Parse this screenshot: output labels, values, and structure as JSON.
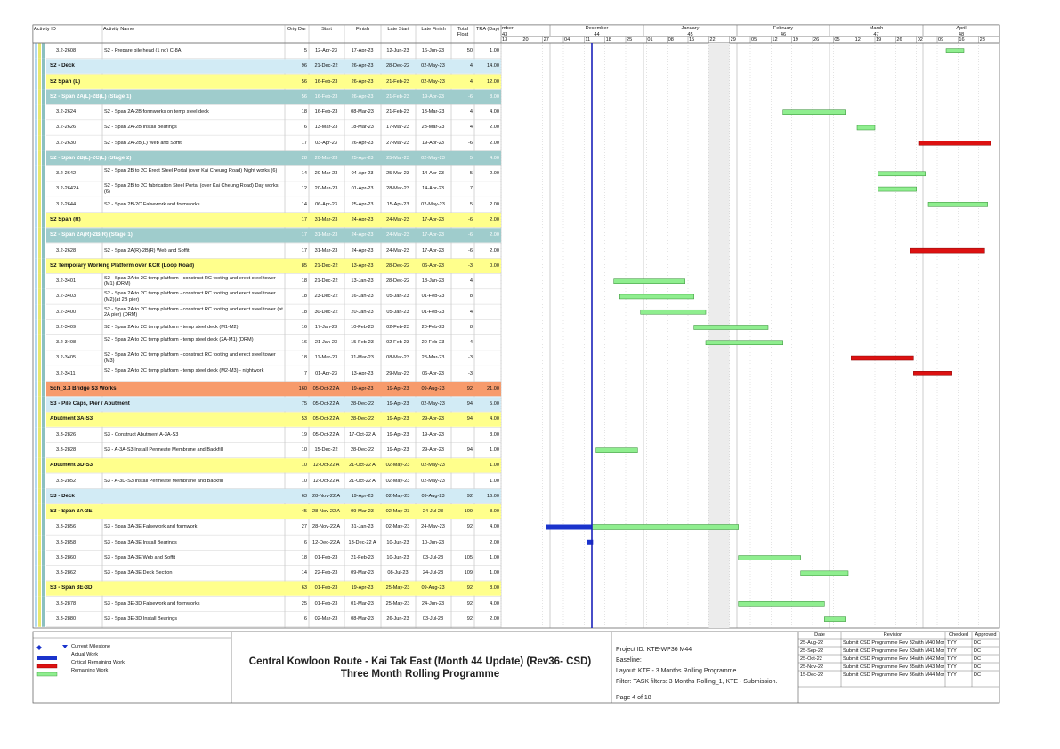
{
  "table": {
    "columns": [
      "Activity ID",
      "Activity Name",
      "Orig Dur",
      "Start",
      "Finish",
      "Late Start",
      "Late Finish",
      "Total Float",
      "TRA (Day)"
    ],
    "rows": [
      {
        "id": "3.2-2608",
        "name": "S2 - Prepare pile head (1 no) C-8A",
        "dur": "5",
        "start": "12-Apr-23",
        "finish": "17-Apr-23",
        "late_start": "12-Jun-23",
        "late_finish": "16-Jun-23",
        "float": "50",
        "tra": "1.00"
      },
      {
        "name": "S2 - Deck",
        "dur": "96",
        "start": "21-Dec-22",
        "finish": "26-Apr-23",
        "late_start": "28-Dec-22",
        "late_finish": "02-May-23",
        "float": "4",
        "tra": "14.00",
        "fill": "#d2ebf5"
      },
      {
        "name": "S2 Span (L)",
        "dur": "56",
        "start": "16-Feb-23",
        "finish": "26-Apr-23",
        "late_start": "21-Feb-23",
        "late_finish": "02-May-23",
        "float": "4",
        "tra": "12.00",
        "fill": "#ffff8c"
      },
      {
        "name": "S2 - Span 2A(L)-2B(L) (Stage 1)",
        "dur": "56",
        "start": "16-Feb-23",
        "finish": "26-Apr-23",
        "late_start": "21-Feb-23",
        "late_finish": "19-Apr-23",
        "float": "-6",
        "tra": "8.00",
        "fill": "#9fcccc"
      },
      {
        "id": "3.2-2624",
        "name": "S2 - Span 2A-2B formworks on temp steel deck",
        "dur": "18",
        "start": "16-Feb-23",
        "finish": "08-Mar-23",
        "late_start": "21-Feb-23",
        "late_finish": "13-Mar-23",
        "float": "4",
        "tra": "4.00"
      },
      {
        "id": "3.2-2626",
        "name": "S2 - Span 2A-2B Install Bearings",
        "dur": "6",
        "start": "13-Mar-23",
        "finish": "18-Mar-23",
        "late_start": "17-Mar-23",
        "late_finish": "23-Mar-23",
        "float": "4",
        "tra": "2.00"
      },
      {
        "id": "3.2-2630",
        "name": "S2 - Span 2A-2B(L) Web and Soffit",
        "dur": "17",
        "start": "03-Apr-23",
        "finish": "26-Apr-23",
        "late_start": "27-Mar-23",
        "late_finish": "19-Apr-23",
        "float": "-6",
        "tra": "2.00"
      },
      {
        "name": "S2 - Span 2B(L)-2C(L) (Stage 2)",
        "dur": "28",
        "start": "20-Mar-23",
        "finish": "25-Apr-23",
        "late_start": "25-Mar-23",
        "late_finish": "02-May-23",
        "float": "5",
        "tra": "4.00",
        "fill": "#9fcccc"
      },
      {
        "id": "3.2-2642",
        "name": "S2 - Span 2B to 2C Erect Steel Portal (over Kai Cheung Road) Night works (6)",
        "dur": "14",
        "start": "20-Mar-23",
        "finish": "04-Apr-23",
        "late_start": "25-Mar-23",
        "late_finish": "14-Apr-23",
        "float": "5",
        "tra": "2.00"
      },
      {
        "id": "3.2-2642A",
        "name": "S2 - Span 2B to 2C fabrication Steel Portal (over Kai Cheung Road) Day works (6)",
        "dur": "12",
        "start": "20-Mar-23",
        "finish": "01-Apr-23",
        "late_start": "28-Mar-23",
        "late_finish": "14-Apr-23",
        "float": "7"
      },
      {
        "id": "3.2-2644",
        "name": "S2 - Span 2B-2C Falsework and formworks",
        "dur": "14",
        "start": "06-Apr-23",
        "finish": "25-Apr-23",
        "late_start": "15-Apr-23",
        "late_finish": "02-May-23",
        "float": "5",
        "tra": "2.00"
      },
      {
        "name": "S2 Span (R)",
        "dur": "17",
        "start": "31-Mar-23",
        "finish": "24-Apr-23",
        "late_start": "24-Mar-23",
        "late_finish": "17-Apr-23",
        "float": "-6",
        "tra": "2.00",
        "fill": "#ffff8c"
      },
      {
        "name": "S2 - Span 2A(R)-2B(R) (Stage 1)",
        "dur": "17",
        "start": "31-Mar-23",
        "finish": "24-Apr-23",
        "late_start": "24-Mar-23",
        "late_finish": "17-Apr-23",
        "float": "-6",
        "tra": "2.00",
        "fill": "#9fcccc"
      },
      {
        "id": "3.2-2628",
        "name": "S2 - Span 2A(R)-2B(R) Web and Soffit",
        "dur": "17",
        "start": "31-Mar-23",
        "finish": "24-Apr-23",
        "late_start": "24-Mar-23",
        "late_finish": "17-Apr-23",
        "float": "-6",
        "tra": "2.00"
      },
      {
        "name": "S2 Temporary Working Platform over KCR (Loop Road)",
        "dur": "85",
        "start": "21-Dec-22",
        "finish": "13-Apr-23",
        "late_start": "28-Dec-22",
        "late_finish": "06-Apr-23",
        "float": "-3",
        "tra": "0.00",
        "fill": "#ffff8c"
      },
      {
        "id": "3.2-3401",
        "name": "S2 - Span 2A to 2C temp platform - construct RC footing and erect steel tower (M1) (DRM)",
        "dur": "18",
        "start": "21-Dec-22",
        "finish": "13-Jan-23",
        "late_start": "28-Dec-22",
        "late_finish": "18-Jan-23",
        "float": "4"
      },
      {
        "id": "3.2-3403",
        "name": "S2 - Span 2A to 2C temp platform - construct RC footing and erect steel tower (M2)(at 2B pier)",
        "dur": "18",
        "start": "23-Dec-22",
        "finish": "16-Jan-23",
        "late_start": "05-Jan-23",
        "late_finish": "01-Feb-23",
        "float": "8"
      },
      {
        "id": "3.2-3400",
        "name": "S2 - Span 2A to 2C temp platform - construct RC footing and erect steel tower (at 2A pier) (DRM)",
        "dur": "18",
        "start": "30-Dec-22",
        "finish": "20-Jan-23",
        "late_start": "05-Jan-23",
        "late_finish": "01-Feb-23",
        "float": "4"
      },
      {
        "id": "3.2-3409",
        "name": "S2 - Span 2A to 2C temp platform - temp steel deck (M1-M2)",
        "dur": "16",
        "start": "17-Jan-23",
        "finish": "10-Feb-23",
        "late_start": "02-Feb-23",
        "late_finish": "20-Feb-23",
        "float": "8"
      },
      {
        "id": "3.2-3408",
        "name": "S2 - Span 2A to 2C temp platform - temp steel deck (2A-M1) (DRM)",
        "dur": "16",
        "start": "21-Jan-23",
        "finish": "15-Feb-23",
        "late_start": "02-Feb-23",
        "late_finish": "20-Feb-23",
        "float": "4"
      },
      {
        "id": "3.2-3405",
        "name": "S2 - Span 2A to 2C temp platform - construct RC footing and erect steel tower (M3)",
        "dur": "18",
        "start": "11-Mar-23",
        "finish": "31-Mar-23",
        "late_start": "08-Mar-23",
        "late_finish": "28-Mar-23",
        "float": "-3"
      },
      {
        "id": "3.2-3411",
        "name": "S2 - Span 2A to 2C temp platform - temp steel deck (M2-M3) - nightwork",
        "dur": "7",
        "start": "01-Apr-23",
        "finish": "13-Apr-23",
        "late_start": "29-Mar-23",
        "late_finish": "06-Apr-23",
        "float": "-3"
      },
      {
        "name": "Sch_3.3 Bridge S3 Works",
        "dur": "160",
        "start": "05-Oct-22 A",
        "finish": "19-Apr-23",
        "late_start": "19-Apr-23",
        "late_finish": "09-Aug-23",
        "float": "92",
        "tra": "21.00",
        "fill": "#f79b6c"
      },
      {
        "name": "S3 - Pile Caps, Pier / Abutment",
        "dur": "75",
        "start": "05-Oct-22 A",
        "finish": "28-Dec-22",
        "late_start": "19-Apr-23",
        "late_finish": "02-May-23",
        "float": "94",
        "tra": "5.00",
        "fill": "#d2ebf5"
      },
      {
        "name": "Abutment 3A-S3",
        "dur": "53",
        "start": "05-Oct-22 A",
        "finish": "28-Dec-22",
        "late_start": "19-Apr-23",
        "late_finish": "29-Apr-23",
        "float": "94",
        "tra": "4.00",
        "fill": "#ffff8c"
      },
      {
        "id": "3.3-2826",
        "name": "S3 - Construct Abutment A-3A-S3",
        "dur": "19",
        "start": "05-Oct-22 A",
        "finish": "17-Oct-22 A",
        "late_start": "19-Apr-23",
        "late_finish": "19-Apr-23",
        "tra": "3.00"
      },
      {
        "id": "3.3-2828",
        "name": "S3 - A-3A-S3 Install Permeate Membrane and Backfill",
        "dur": "10",
        "start": "15-Dec-22",
        "finish": "28-Dec-22",
        "late_start": "19-Apr-23",
        "late_finish": "29-Apr-23",
        "float": "94",
        "tra": "1.00"
      },
      {
        "name": "Abutment 3D-S3",
        "dur": "10",
        "start": "12-Oct-22 A",
        "finish": "21-Oct-22 A",
        "late_start": "02-May-23",
        "late_finish": "02-May-23",
        "tra": "1.00",
        "fill": "#ffff8c"
      },
      {
        "id": "3.3-2852",
        "name": "S3 - A-3D-S3 Install Permeate Membrane and Backfill",
        "dur": "10",
        "start": "12-Oct-22 A",
        "finish": "21-Oct-22 A",
        "late_start": "02-May-23",
        "late_finish": "02-May-23",
        "tra": "1.00"
      },
      {
        "name": "S3 - Deck",
        "dur": "63",
        "start": "28-Nov-22 A",
        "finish": "19-Apr-23",
        "late_start": "02-May-23",
        "late_finish": "09-Aug-23",
        "float": "92",
        "tra": "16.00",
        "fill": "#d2ebf5"
      },
      {
        "name": "S3 - Span 3A-3E",
        "dur": "45",
        "start": "28-Nov-22 A",
        "finish": "09-Mar-23",
        "late_start": "02-May-23",
        "late_finish": "24-Jul-23",
        "float": "109",
        "tra": "8.00",
        "fill": "#ffff8c"
      },
      {
        "id": "3.3-2856",
        "name": "S3 - Span 3A-3E Falsework and formwork",
        "dur": "27",
        "start": "28-Nov-22 A",
        "finish": "31-Jan-23",
        "late_start": "02-May-23",
        "late_finish": "24-May-23",
        "float": "92",
        "tra": "4.00"
      },
      {
        "id": "3.3-2858",
        "name": "S3 - Span 3A-3E Install Bearings",
        "dur": "6",
        "start": "12-Dec-22 A",
        "finish": "13-Dec-22 A",
        "late_start": "10-Jun-23",
        "late_finish": "10-Jun-23",
        "tra": "2.00"
      },
      {
        "id": "3.3-2860",
        "name": "S3 - Span 3A-3E Web and Soffit",
        "dur": "18",
        "start": "01-Feb-23",
        "finish": "21-Feb-23",
        "late_start": "10-Jun-23",
        "late_finish": "03-Jul-23",
        "float": "105",
        "tra": "1.00"
      },
      {
        "id": "3.3-2862",
        "name": "S3 - Span 3A-3E Deck Section",
        "dur": "14",
        "start": "22-Feb-23",
        "finish": "09-Mar-23",
        "late_start": "08-Jul-23",
        "late_finish": "24-Jul-23",
        "float": "109",
        "tra": "1.00"
      },
      {
        "name": "S3 - Span 3E-3D",
        "dur": "63",
        "start": "01-Feb-23",
        "finish": "19-Apr-23",
        "late_start": "25-May-23",
        "late_finish": "09-Aug-23",
        "float": "92",
        "tra": "8.00",
        "fill": "#ffff8c"
      },
      {
        "id": "3.3-2878",
        "name": "S3 - Span 3E-3D Falsework and formworks",
        "dur": "25",
        "start": "01-Feb-23",
        "finish": "01-Mar-23",
        "late_start": "25-May-23",
        "late_finish": "24-Jun-23",
        "float": "92",
        "tra": "4.00"
      },
      {
        "id": "3.3-2880",
        "name": "S3 - Span 3E-3D Install Bearings",
        "dur": "6",
        "start": "02-Mar-23",
        "finish": "08-Mar-23",
        "late_start": "26-Jun-23",
        "late_finish": "03-Jul-23",
        "float": "92",
        "tra": "2.00"
      }
    ]
  },
  "timescale": {
    "months": [
      "mber",
      "December",
      "January",
      "February",
      "March",
      "April"
    ],
    "weeks": [
      "43",
      "44",
      "45",
      "46",
      "47",
      "48"
    ],
    "days": [
      "13",
      "20",
      "27",
      "04",
      "11",
      "18",
      "25",
      "01",
      "08",
      "15",
      "22",
      "29",
      "05",
      "12",
      "19",
      "26",
      "05",
      "12",
      "19",
      "26",
      "02",
      "09",
      "16",
      "23"
    ]
  },
  "legend": [
    "Current Milestone",
    "Actual Work",
    "Critical Remaining Work",
    "Remaining Work"
  ],
  "title": {
    "line1": "Central Kowloon Route - Kai Tak East (Month 44 Update) (Rev36- CSD)",
    "line2": "Three Month Rolling Programme"
  },
  "info": {
    "project_id": "Project ID: KTE-WP36  M44",
    "baseline": "Baseline:",
    "layout": "Layout: KTE - 3 Months Rolling Programme",
    "filter": "Filter: TASK filters: 3 Months Rolling_1, KTE - Submission.",
    "page": "Page 4 of 18"
  },
  "revisions": {
    "columns": [
      "Date",
      "Revision",
      "Checked",
      "Approved"
    ],
    "rows": [
      [
        "25-Aug-22",
        "Submit CSD Programme Rev 32with M40 Mon...",
        "TYY",
        "DC"
      ],
      [
        "25-Sep-22",
        "Submit CSD Programme Rev 33with M41 Mon...",
        "TYY",
        "DC"
      ],
      [
        "25-Oct-22",
        "Submit CSD Programme Rev 34with M42 Mon...",
        "TYY",
        "DC"
      ],
      [
        "25-Nov-22",
        "Submit CSD Programme Rev 35with M43 Mon...",
        "TYY",
        "DC"
      ],
      [
        "15-Dec-22",
        "Submit CSD Programme Rev 36with M44 Mon...",
        "TYY",
        "DC"
      ]
    ]
  }
}
